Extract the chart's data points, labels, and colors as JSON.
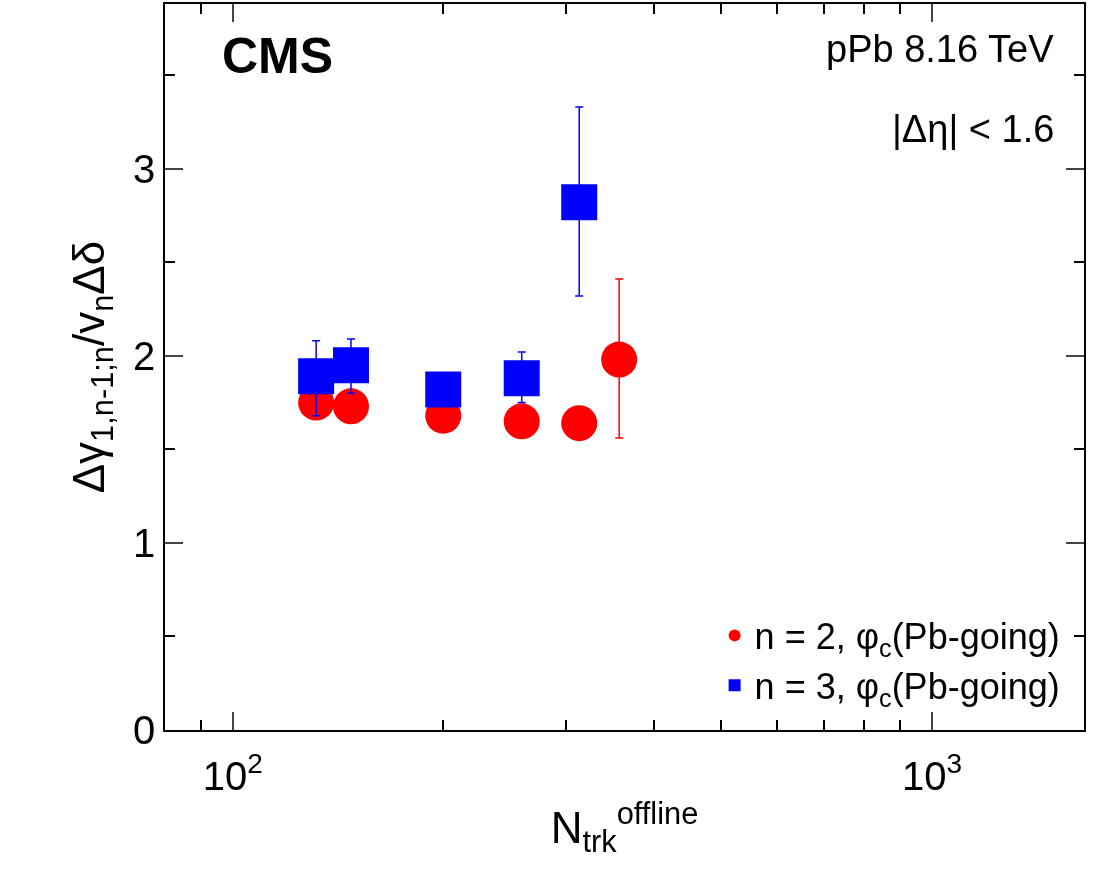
{
  "chart_data": {
    "type": "scatter",
    "xlabel": "N$_{trk}$$^{offline}$",
    "ylabel": "Δγ$_{1,n-1;n}$/v$_{n}$Δδ",
    "annotations": [
      "CMS",
      "pPb 8.16 TeV",
      "|Δη| < 1.6"
    ],
    "log": "x",
    "xlim": [
      80,
      1650
    ],
    "xticks": [
      {
        "value": 80,
        "label": null
      },
      {
        "value": 90,
        "label": null
      },
      {
        "value": 100,
        "label": "10$^{2}$"
      },
      {
        "value": 200,
        "label": null
      },
      {
        "value": 300,
        "label": null
      },
      {
        "value": 400,
        "label": null
      },
      {
        "value": 500,
        "label": null
      },
      {
        "value": 600,
        "label": null
      },
      {
        "value": 700,
        "label": null
      },
      {
        "value": 800,
        "label": null
      },
      {
        "value": 900,
        "label": null
      },
      {
        "value": 1000,
        "label": "10$^{3}$"
      }
    ],
    "ylim": [
      0,
      3.88
    ],
    "yticks": [
      0,
      {
        "value": 0.5,
        "label": null
      },
      1,
      {
        "value": 1.5,
        "label": null
      },
      2,
      {
        "value": 2.5,
        "label": null
      },
      3,
      {
        "value": 3.5,
        "label": null
      }
    ],
    "grid": false,
    "legend": "bottom right",
    "series": [
      {
        "name": "n = 2, φ$_{c}$(Pb-going)",
        "color": "#ff0000",
        "marker": "circle",
        "x": [
          131.6,
          147.6,
          200,
          259,
          313,
          357
        ],
        "values": [
          1.75,
          1.73,
          1.68,
          1.65,
          1.64,
          1.98
        ],
        "errors": [
          null,
          null,
          null,
          null,
          null,
          [
            1.56,
            2.41
          ]
        ]
      },
      {
        "name": "n = 3, φ$_{c}$(Pb-going)",
        "color": "#0000ff",
        "marker": "square",
        "x": [
          131.6,
          147.6,
          200,
          259,
          313
        ],
        "values": [
          1.89,
          1.95,
          1.82,
          1.88,
          2.82
        ],
        "errors": [
          [
            1.68,
            2.08
          ],
          [
            1.8,
            2.09
          ],
          null,
          [
            1.75,
            2.02
          ],
          [
            2.32,
            3.33
          ]
        ]
      }
    ]
  }
}
